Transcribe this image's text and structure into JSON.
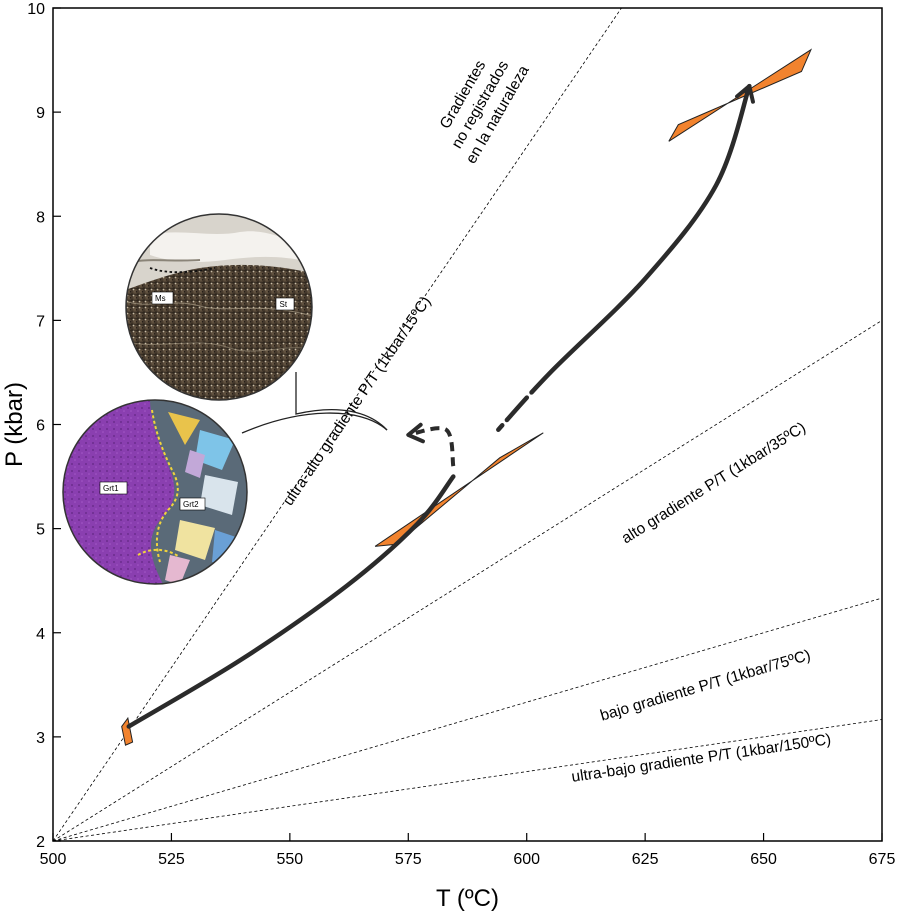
{
  "chart_data": {
    "type": "line",
    "title": "",
    "xlabel": "T (ºC)",
    "ylabel": "P (kbar)",
    "xlim": [
      500,
      675
    ],
    "ylim": [
      2,
      10
    ],
    "xticks": [
      500,
      525,
      550,
      575,
      600,
      625,
      650,
      675
    ],
    "yticks": [
      2,
      3,
      4,
      5,
      6,
      7,
      8,
      9,
      10
    ],
    "grid": false,
    "gradient_lines": [
      {
        "label": "ultra-alto gradiente P/T (1kbar/15ºC)",
        "degC_per_kbar": 15
      },
      {
        "label": "alto gradiente P/T (1kbar/35ºC)",
        "degC_per_kbar": 35
      },
      {
        "label": "bajo gradiente P/T (1kbar/75ºC)",
        "degC_per_kbar": 75
      },
      {
        "label": "ultra-bajo gradiente P/T (1kbar/150ºC)",
        "degC_per_kbar": 150
      }
    ],
    "forbidden_zone_label": [
      "Gradientes",
      "no registrados",
      "en la naturaleza"
    ],
    "pt_fields": [
      {
        "T": [
          515.8,
          516.8,
          515.3,
          514.5
        ],
        "P": [
          3.18,
          2.95,
          2.92,
          3.1
        ]
      },
      {
        "T": [
          603.5,
          594.3,
          572.5,
          568
        ],
        "P": [
          5.92,
          5.68,
          4.85,
          4.83
        ]
      },
      {
        "T": [
          660,
          630,
          632,
          658
        ],
        "P": [
          9.6,
          8.72,
          8.88,
          9.39
        ]
      }
    ],
    "pt_path": {
      "prograde": {
        "T": [
          516,
          540,
          562,
          577,
          584.5
        ],
        "P": [
          3.1,
          3.75,
          4.45,
          5.05,
          5.5
        ]
      },
      "retrograde_dashed": {
        "T": [
          584.5,
          583,
          575
        ],
        "P": [
          5.6,
          5.95,
          5.9
        ]
      },
      "exhumation": {
        "T": [
          594,
          605,
          625,
          640,
          647
        ],
        "P": [
          5.95,
          6.5,
          7.4,
          8.3,
          9.25
        ]
      }
    },
    "insets": [
      {
        "labels": [
          "Ms",
          "St"
        ]
      },
      {
        "labels": [
          "Grt1",
          "Grt2"
        ]
      }
    ]
  }
}
